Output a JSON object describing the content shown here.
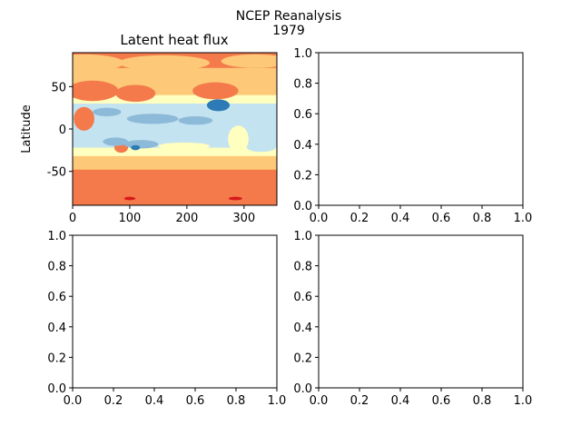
{
  "figure": {
    "suptitle_line1": "NCEP Reanalysis",
    "suptitle_line2": "1979"
  },
  "chart_data": [
    {
      "type": "heatmap",
      "title": "Latent heat flux",
      "xlabel": "",
      "ylabel": "Latitude",
      "xlim": [
        0,
        357.5
      ],
      "ylim": [
        -90,
        90
      ],
      "x_ticks": [
        0,
        100,
        200,
        300
      ],
      "y_ticks": [
        -50,
        0,
        50
      ],
      "colormap": "RdYlBu",
      "level_colors": [
        "#d7191c",
        "#f47a4b",
        "#fdc877",
        "#ffffbf",
        "#c4e3f0",
        "#8cbad8",
        "#2c7bb6"
      ]
    },
    {
      "type": "empty",
      "xlim": [
        0,
        1
      ],
      "ylim": [
        0,
        1
      ],
      "x_ticks": [
        "0.0",
        "0.2",
        "0.4",
        "0.6",
        "0.8",
        "1.0"
      ],
      "y_ticks": [
        "0.0",
        "0.2",
        "0.4",
        "0.6",
        "0.8",
        "1.0"
      ]
    },
    {
      "type": "empty",
      "xlim": [
        0,
        1
      ],
      "ylim": [
        0,
        1
      ],
      "x_ticks": [
        "0.0",
        "0.2",
        "0.4",
        "0.6",
        "0.8",
        "1.0"
      ],
      "y_ticks": [
        "0.0",
        "0.2",
        "0.4",
        "0.6",
        "0.8",
        "1.0"
      ]
    },
    {
      "type": "empty",
      "xlim": [
        0,
        1
      ],
      "ylim": [
        0,
        1
      ],
      "x_ticks": [
        "0.0",
        "0.2",
        "0.4",
        "0.6",
        "0.8",
        "1.0"
      ],
      "y_ticks": [
        "0.0",
        "0.2",
        "0.4",
        "0.6",
        "0.8",
        "1.0"
      ]
    }
  ]
}
